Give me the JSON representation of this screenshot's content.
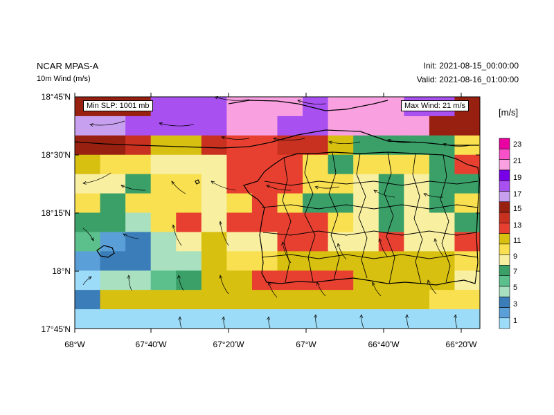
{
  "header": {
    "title": "NCAR MPAS-A",
    "subtitle": "10m Wind (m/s)",
    "init": "Init: 2021-08-15_00:00:00",
    "valid": "Valid: 2021-08-16_01:00:00"
  },
  "annotations": {
    "min_slp": "Min SLP:  1001 mb",
    "max_wind": "Max Wind:  21 m/s"
  },
  "axes": {
    "lat_labels": [
      "18°45'N",
      "18°30'N",
      "18°15'N",
      "18°N",
      "17°45'N"
    ],
    "lon_labels": [
      "68°W",
      "67°40'W",
      "67°20'W",
      "67°W",
      "66°40'W",
      "66°20'W"
    ]
  },
  "colorbar": {
    "units": "[m/s]",
    "labels": [
      "23",
      "21",
      "19",
      "17",
      "15",
      "13",
      "11",
      "9",
      "7",
      "5",
      "3",
      "1"
    ],
    "colors": [
      "#9ddcf8",
      "#5a9fd8",
      "#3a7db8",
      "#a8e0c0",
      "#5cc08c",
      "#3aa068",
      "#f8f0a0",
      "#f8e050",
      "#d8c010",
      "#e84030",
      "#c83020",
      "#982010",
      "#c8a0f0",
      "#a850f0",
      "#7800e8",
      "#f8a0e0",
      "#f850c8",
      "#e800a0"
    ]
  },
  "map": {
    "colors": [
      "#9ddcf8",
      "#5a9fd8",
      "#3a7db8",
      "#a8e0c0",
      "#5cc08c",
      "#3aa068",
      "#f8f0a0",
      "#f8e050",
      "#d8c010",
      "#e84030",
      "#c83020",
      "#982010",
      "#c8a0f0",
      "#a850f0",
      "#7800e8",
      "#f8a0e0",
      "#f850c8",
      "#e800a0"
    ],
    "grid": [
      "lllnnnpppnpppnnl",
      "mmnnnnppnnppppll",
      "llkiikjjkkiffffh",
      "ihhgggjjjhfhhhfj",
      "ggfhhgjjjhhgfgff",
      "hfhhhghjhffgfgfh",
      "ffdhjgjjjjhgfggf",
      "ebcdgiggjjggjggj",
      "bccddihhiiiiiiih",
      "addefiijjjjiiiig",
      "ciiiiiiiiiiiiihh",
      "aaaaaaaaaaaaaaaa"
    ]
  }
}
